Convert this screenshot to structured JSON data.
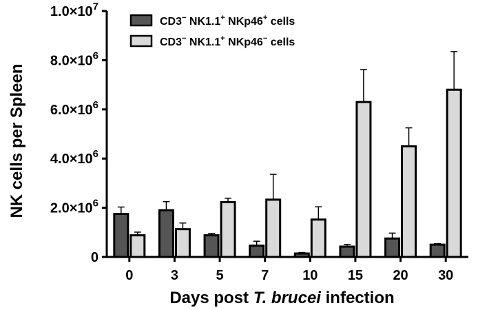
{
  "chart_data": {
    "type": "bar",
    "categories": [
      "0",
      "3",
      "5",
      "7",
      "10",
      "15",
      "20",
      "30"
    ],
    "series": [
      {
        "name": "CD3⁻ NK1.1⁺ NKp46⁺ cells",
        "color": "#555555",
        "values": [
          1750000,
          1900000,
          880000,
          460000,
          140000,
          420000,
          750000,
          500000
        ],
        "errors": [
          280000,
          350000,
          80000,
          180000,
          40000,
          90000,
          220000,
          40000
        ]
      },
      {
        "name": "CD3⁻ NK1.1⁺ NKp46⁻ cells",
        "color": "#d9d9d9",
        "values": [
          880000,
          1130000,
          2230000,
          2330000,
          1520000,
          6300000,
          4500000,
          6800000
        ],
        "errors": [
          130000,
          250000,
          160000,
          1030000,
          520000,
          1320000,
          750000,
          1550000
        ]
      }
    ],
    "ylim": [
      0,
      10000000
    ],
    "yticks": [
      {
        "value": 0,
        "mantissa": "0",
        "exp": ""
      },
      {
        "value": 2000000,
        "mantissa": "2.0×10",
        "exp": "6"
      },
      {
        "value": 4000000,
        "mantissa": "4.0×10",
        "exp": "6"
      },
      {
        "value": 6000000,
        "mantissa": "6.0×10",
        "exp": "6"
      },
      {
        "value": 8000000,
        "mantissa": "8.0×10",
        "exp": "6"
      },
      {
        "value": 10000000,
        "mantissa": "1.0×10",
        "exp": "7"
      }
    ],
    "ylabel": "NK cells per Spleen",
    "xlabel": {
      "before": "Days post ",
      "italic": "T. brucei",
      "after": " infection"
    },
    "legend": {
      "placement": "top-left",
      "entries": [
        {
          "prefix": "CD3",
          "sup1": "−",
          "middle": " NK1.1",
          "sup2": "+",
          "middle2": " NKp46",
          "sup3": "+",
          "suffix": " cells"
        },
        {
          "prefix": "CD3",
          "sup1": "−",
          "middle": " NK1.1",
          "sup2": "+",
          "middle2": " NKp46",
          "sup3": "−",
          "suffix": " cells"
        }
      ]
    },
    "grid": false
  }
}
